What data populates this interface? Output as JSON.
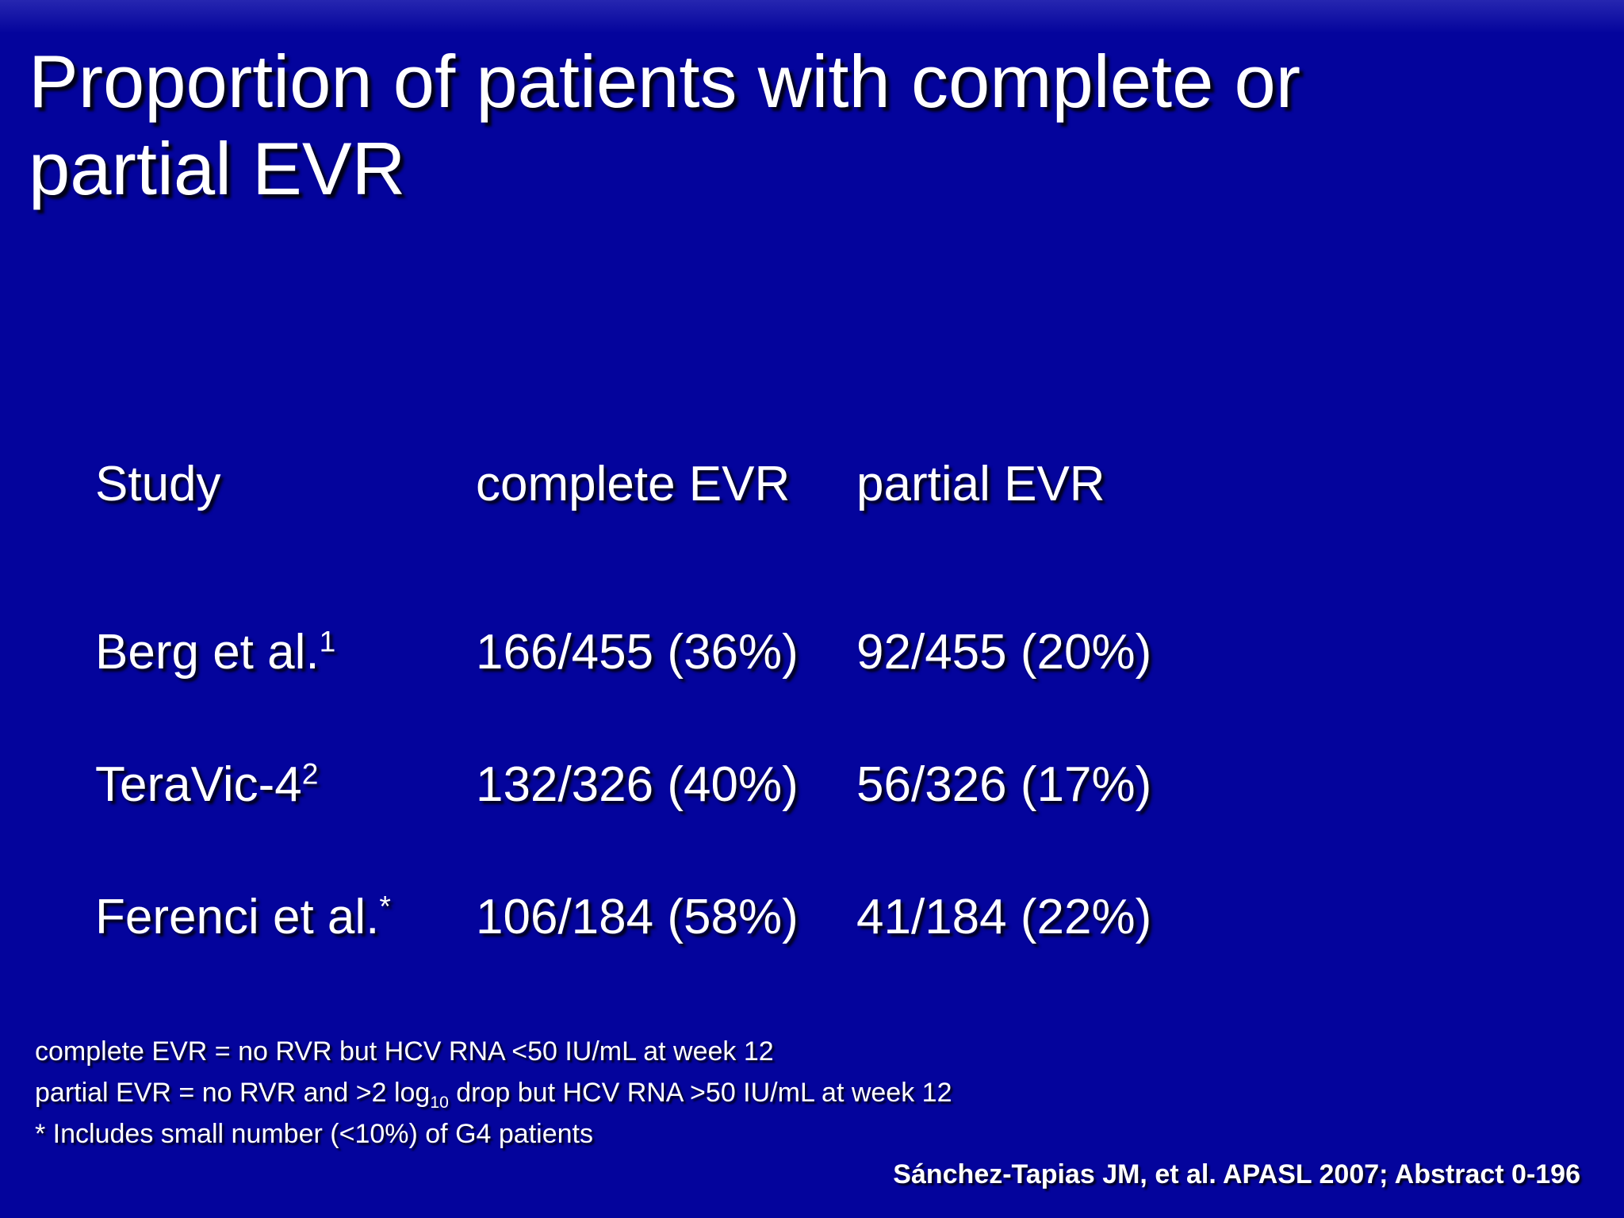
{
  "slide": {
    "title_line1": "Proportion of patients with complete or",
    "title_line2": "partial EVR",
    "colors": {
      "background": "#04049c",
      "background_top_edge": "#2626b0",
      "text": "#ffffff"
    }
  },
  "table": {
    "col_headers": {
      "study": "Study",
      "complete": "complete EVR",
      "partial": "partial EVR"
    },
    "rows": [
      {
        "study": "Berg et al.",
        "sup": "1",
        "complete": "166/455 (36%)",
        "partial": "92/455 (20%)"
      },
      {
        "study": "TeraVic-4",
        "sup": "2",
        "complete": "132/326 (40%)",
        "partial": "56/326 (17%)"
      },
      {
        "study": "Ferenci et al.",
        "sup": "*",
        "complete": "106/184 (58%)",
        "partial": "41/184 (22%)"
      }
    ]
  },
  "footnotes": {
    "line1": "complete EVR = no RVR but HCV RNA <50 IU/mL at week 12",
    "line2_pre": "partial EVR = no RVR and >2 log",
    "line2_sub": "10",
    "line2_post": " drop but HCV RNA >50 IU/mL at week 12",
    "line3": "* Includes small number (<10%) of G4 patients"
  },
  "citation": "Sánchez-Tapias JM, et al. APASL 2007; Abstract 0-196"
}
